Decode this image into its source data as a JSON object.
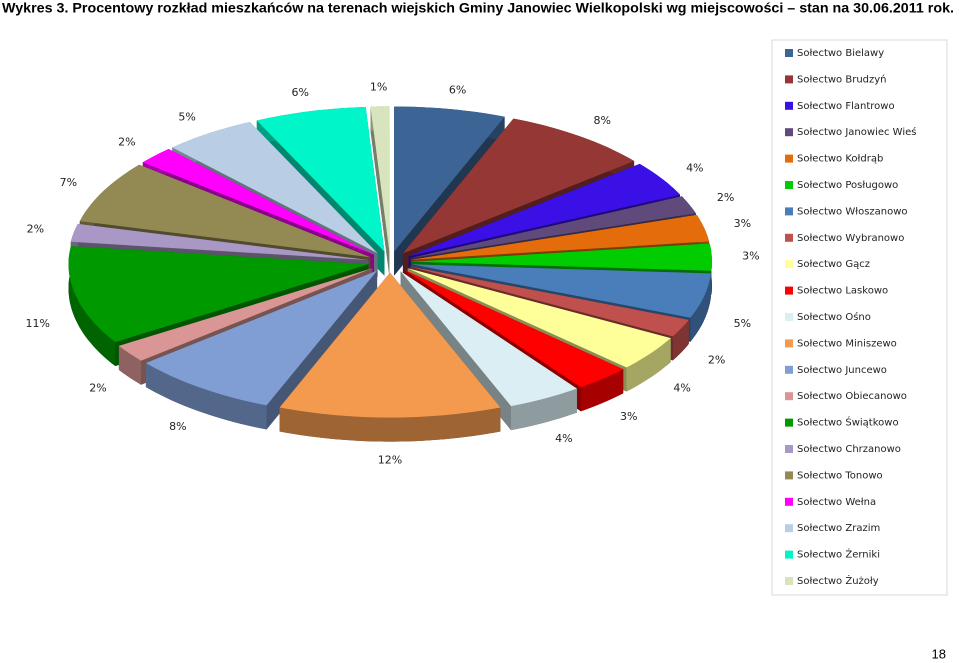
{
  "chart_data": {
    "type": "pie3d",
    "title": "Wykres 3. Procentowy rozkład mieszkańców na terenach wiejskich Gminy Janowiec Wielkopolski wg miejscowości – stan na 30.06.2011 rok.",
    "categories": [
      "Sołectwo Bielawy",
      "Sołectwo Brudzyń",
      "Sołectwo Flantrowo",
      "Sołectwo Janowiec Wieś",
      "Sołectwo Kołdrąb",
      "Sołectwo Posługowo",
      "Sołectwo Włoszanowo",
      "Sołectwo Wybranowo",
      "Sołectwo Gącz",
      "Sołectwo Laskowo",
      "Sołectwo Ośno",
      "Sołectwo Miniszewo",
      "Sołectwo Juncewo",
      "Sołectwo Obiecanowo",
      "Sołectwo Świątkowo",
      "Sołectwo Chrzanowo",
      "Sołectwo Tonowo",
      "Sołectwo Wełna",
      "Sołectwo Zrazim",
      "Sołectwo Żerniki",
      "Sołectwo Żużoły"
    ],
    "values": [
      6,
      8,
      4,
      2,
      3,
      3,
      5,
      2,
      4,
      3,
      4,
      12,
      8,
      2,
      11,
      2,
      7,
      2,
      5,
      6,
      1
    ],
    "value_labels": [
      "6%",
      "8%",
      "4%",
      "2%",
      "3%",
      "3%",
      "5%",
      "2%",
      "4%",
      "3%",
      "4%",
      "12%",
      "8%",
      "2%",
      "11%",
      "2%",
      "7%",
      "2%",
      "5%",
      "6%",
      "1%"
    ],
    "colors": [
      "#3c6494",
      "#953735",
      "#3a10e6",
      "#5f4a7b",
      "#e46c0a",
      "#00cc00",
      "#4a7ebb",
      "#c0504d",
      "#ffff99",
      "#ff0000",
      "#dbeef4",
      "#f39a4e",
      "#809ed4",
      "#d99694",
      "#009a00",
      "#a998c5",
      "#938953",
      "#ff00ff",
      "#b9cde5",
      "#00f5c8",
      "#d7e4bd"
    ],
    "legend": "right"
  },
  "page_number": "18"
}
